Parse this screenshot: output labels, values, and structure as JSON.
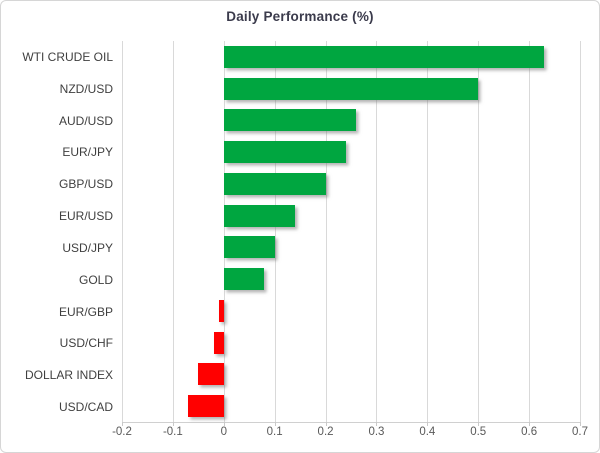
{
  "chart_data": {
    "type": "bar",
    "orientation": "horizontal",
    "title": "Daily Performance (%)",
    "categories": [
      "WTI CRUDE OIL",
      "NZD/USD",
      "AUD/USD",
      "EUR/JPY",
      "GBP/USD",
      "EUR/USD",
      "USD/JPY",
      "GOLD",
      "EUR/GBP",
      "USD/CHF",
      "DOLLAR INDEX",
      "USD/CAD"
    ],
    "values": [
      0.63,
      0.5,
      0.26,
      0.24,
      0.2,
      0.14,
      0.1,
      0.08,
      -0.01,
      -0.02,
      -0.05,
      -0.07
    ],
    "xlim": [
      -0.2,
      0.7
    ],
    "x_tick_values": [
      -0.2,
      -0.1,
      0,
      0.1,
      0.2,
      0.3,
      0.4,
      0.5,
      0.6,
      0.7
    ],
    "x_tick_labels": [
      "-0.2",
      "-0.1",
      "0",
      "0.1",
      "0.2",
      "0.3",
      "0.4",
      "0.5",
      "0.6",
      "0.7"
    ],
    "grid": true,
    "legend": false,
    "xlabel": "",
    "ylabel": "",
    "colors": {
      "positive": "#00a640",
      "negative": "#ff0000",
      "gridline": "#d9d9d9",
      "title": "#3b3b4c",
      "category_label": "#3f3f3f",
      "axis_label": "#595959",
      "frame_border": "#d6d6d6",
      "background": "#ffffff"
    }
  }
}
